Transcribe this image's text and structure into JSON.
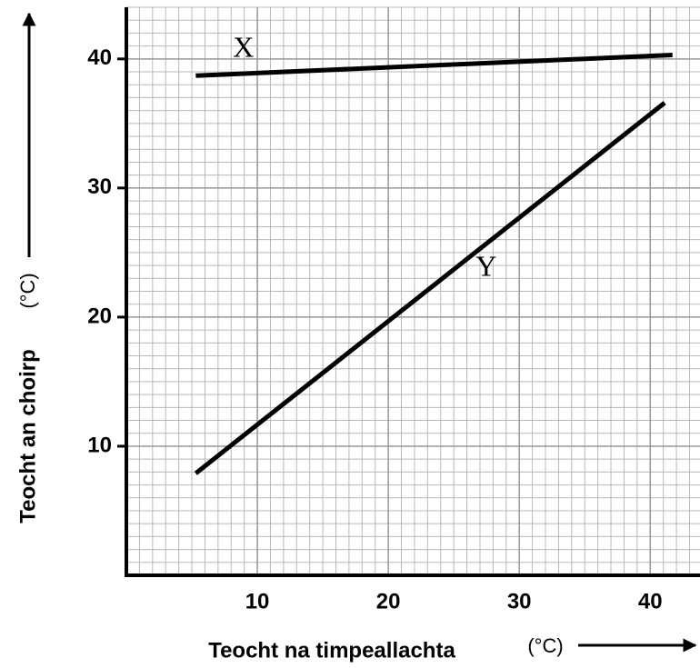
{
  "chart_data": {
    "type": "line",
    "xlabel": "Teocht na timpeallachta",
    "xunit": "(°C)",
    "ylabel": "Teocht an choirp",
    "yunit": "(°C)",
    "xlim": [
      0,
      43.8
    ],
    "ylim": [
      0,
      44
    ],
    "xticks": [
      10,
      20,
      30,
      40
    ],
    "yticks": [
      10,
      20,
      30,
      40
    ],
    "grid": true,
    "minor_grid_step": 1,
    "series": [
      {
        "name": "X",
        "color": "#000000",
        "x": [
          5.3,
          41.7
        ],
        "values": [
          38.7,
          40.3
        ]
      },
      {
        "name": "Y",
        "color": "#000000",
        "x": [
          5.3,
          41.1
        ],
        "values": [
          7.9,
          36.6
        ]
      }
    ]
  }
}
